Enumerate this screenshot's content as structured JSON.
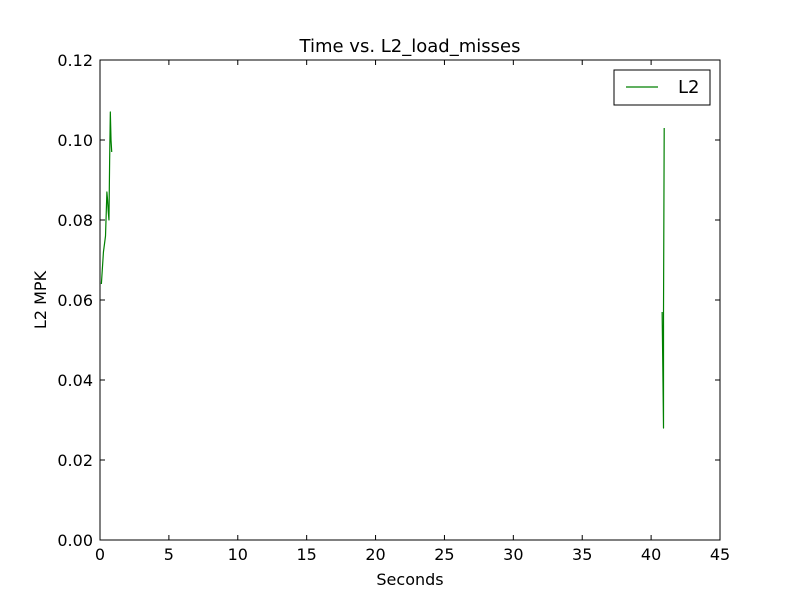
{
  "chart_data": {
    "type": "line",
    "title": "Time vs. L2_load_misses",
    "xlabel": "Seconds",
    "ylabel": "L2 MPK",
    "xlim": [
      0,
      45
    ],
    "ylim": [
      0,
      0.12
    ],
    "x_ticks": [
      "0",
      "5",
      "10",
      "15",
      "20",
      "25",
      "30",
      "35",
      "40",
      "45"
    ],
    "y_ticks": [
      "0.00",
      "0.02",
      "0.04",
      "0.06",
      "0.08",
      "0.10",
      "0.12"
    ],
    "grid": false,
    "legend": {
      "position": "top-right",
      "entries": [
        "L2"
      ]
    },
    "series": [
      {
        "name": "L2",
        "color": "#008000",
        "segments": [
          {
            "x": [
              0.1,
              0.25,
              0.4,
              0.5,
              0.55,
              0.6,
              0.65,
              0.7,
              0.75,
              0.8,
              0.85
            ],
            "y": [
              0.064,
              0.072,
              0.076,
              0.087,
              0.085,
              0.082,
              0.08,
              0.095,
              0.107,
              0.1,
              0.097
            ]
          },
          {
            "x": [
              40.8,
              40.85,
              40.9,
              40.9,
              40.95
            ],
            "y": [
              0.057,
              0.043,
              0.028,
              0.057,
              0.103
            ]
          }
        ]
      }
    ]
  }
}
